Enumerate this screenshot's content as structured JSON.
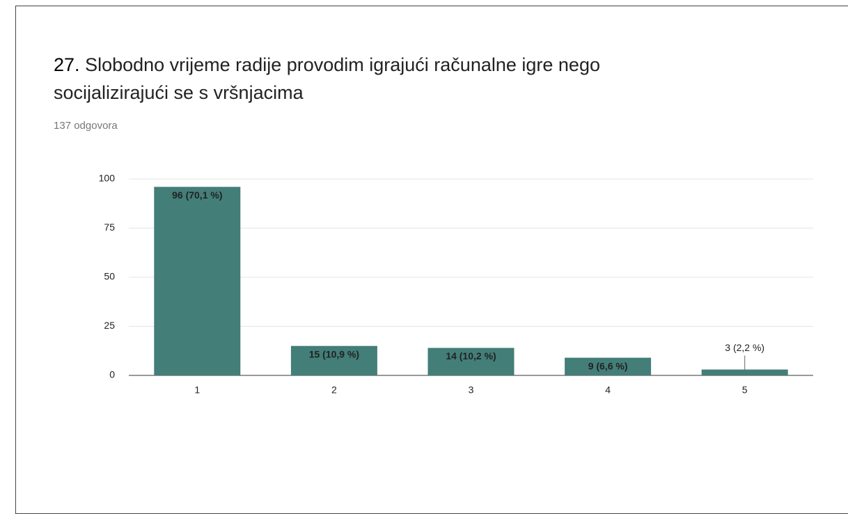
{
  "chart_data": {
    "type": "bar",
    "question_number": "27.",
    "title": "Slobodno vrijeme radije provodim igrajući računalne igre nego socijalizirajući se s vršnjacima",
    "subtitle": "137 odgovora",
    "categories": [
      "1",
      "2",
      "3",
      "4",
      "5"
    ],
    "values": [
      96,
      15,
      14,
      9,
      3
    ],
    "value_labels": [
      "96 (70,1 %)",
      "15 (10,9 %)",
      "14 (10,2 %)",
      "9 (6,6 %)",
      "3 (2,2 %)"
    ],
    "color": "#437e78",
    "ylim": [
      0,
      100
    ],
    "yticks": [
      0,
      25,
      50,
      75,
      100
    ],
    "grid": true
  }
}
